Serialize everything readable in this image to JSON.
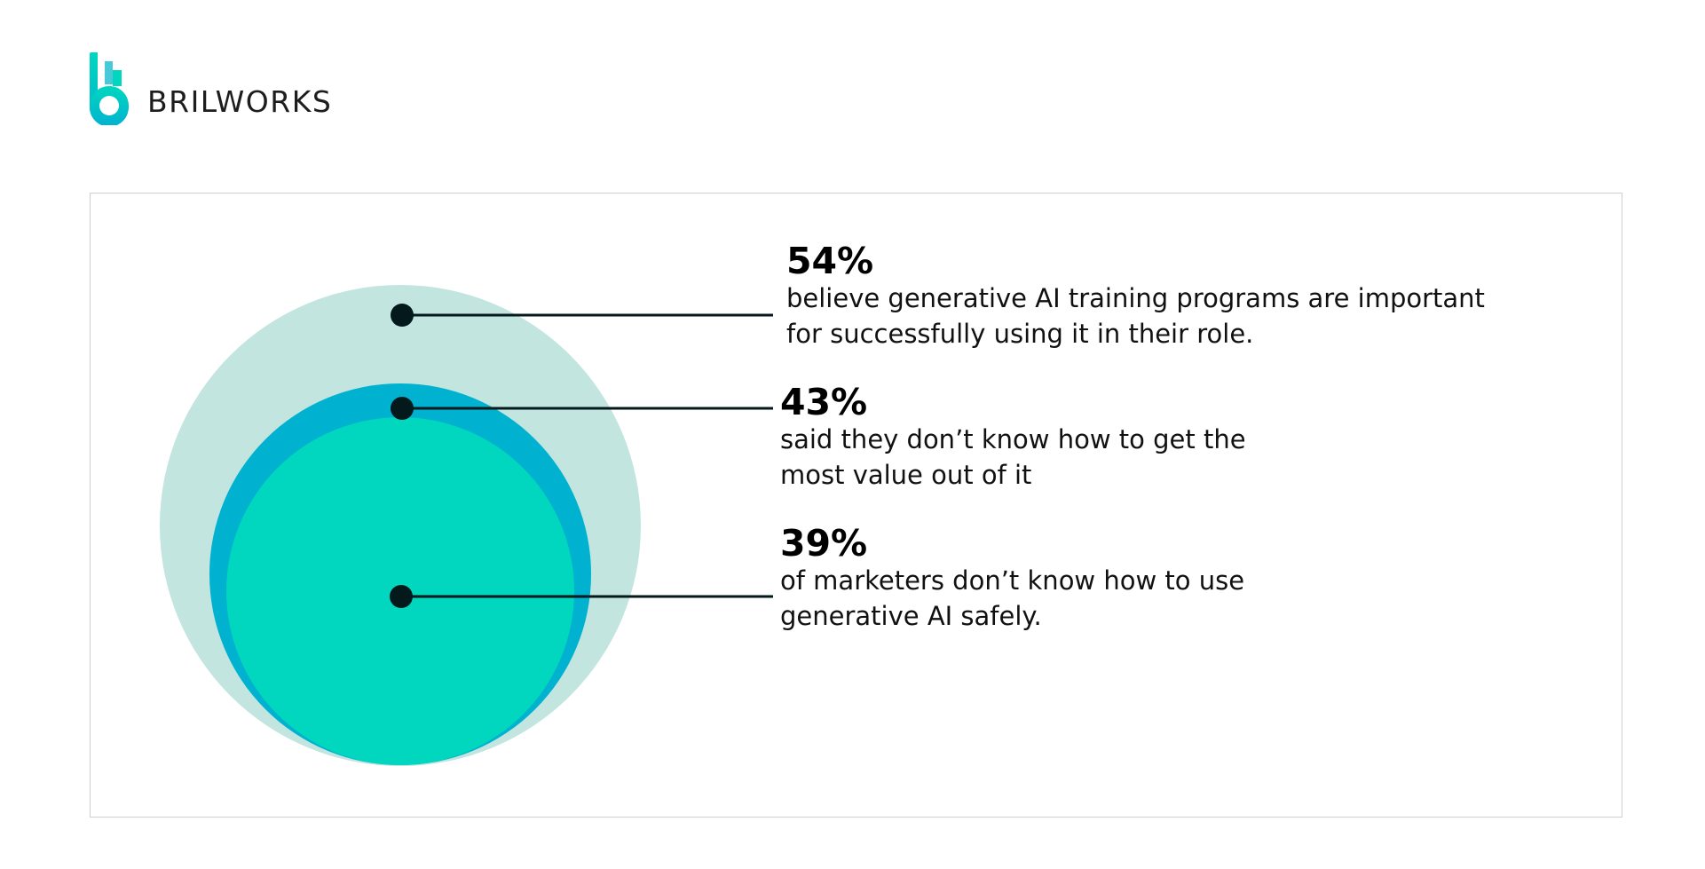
{
  "brand": {
    "name": "BRILWORKS",
    "colors": {
      "teal": "#00D7BE",
      "blue": "#00B3D0",
      "light": "#48C9DA"
    }
  },
  "colors": {
    "outer_circle": "#C2E5E0",
    "middle_circle": "#00B2CF",
    "inner_circle": "#00D7BE",
    "marker": "#04191C"
  },
  "stats": [
    {
      "value": "54%",
      "lines": [
        "believe generative AI training programs are important",
        "for successfully using it in their role."
      ]
    },
    {
      "value": "43%",
      "lines": [
        "said they don’t know how to get the",
        "most value out of it"
      ]
    },
    {
      "value": "39%",
      "lines": [
        "of marketers don’t know how to use",
        "generative AI safely."
      ]
    }
  ]
}
